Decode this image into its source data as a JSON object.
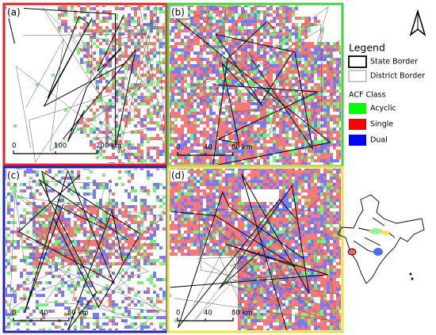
{
  "panels": [
    {
      "label": "(a)",
      "scale": [
        "0",
        "100",
        "200 km"
      ]
    },
    {
      "label": "(b)",
      "scale": [
        "0",
        "40",
        "80 km"
      ]
    },
    {
      "label": "(c)",
      "scale": [
        "0",
        "40",
        "80 km"
      ]
    },
    {
      "label": "(d)",
      "scale": [
        "0",
        "40",
        "80 km"
      ]
    }
  ],
  "legend": {
    "title": "Legend",
    "borders": [
      "State Border",
      "District Border"
    ],
    "class_title": "ACF Class",
    "classes": [
      {
        "name": "Acyclic",
        "color": "#00ff00"
      },
      {
        "name": "Single",
        "color": "#ff0000"
      },
      {
        "name": "Dual",
        "color": "#0000ff"
      }
    ]
  }
}
